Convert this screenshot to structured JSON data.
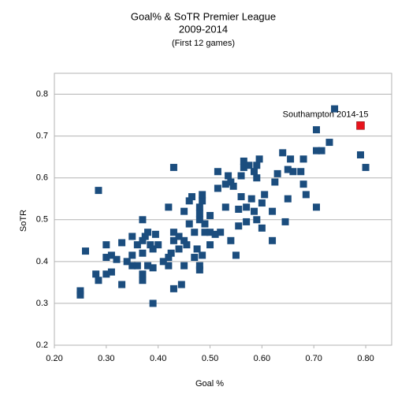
{
  "chart_data": {
    "type": "scatter",
    "title": "Goal% & SoTR Premier League",
    "subtitle": "2009-2014",
    "note": "(First 12 games)",
    "x_label": "Goal %",
    "y_label": "SoTR",
    "color": "#1b4d7e",
    "x": [
      0.25,
      0.25,
      0.26,
      0.28,
      0.285,
      0.285,
      0.3,
      0.3,
      0.3,
      0.31,
      0.31,
      0.32,
      0.33,
      0.33,
      0.34,
      0.35,
      0.35,
      0.35,
      0.36,
      0.36,
      0.37,
      0.37,
      0.37,
      0.37,
      0.37,
      0.375,
      0.38,
      0.38,
      0.385,
      0.39,
      0.39,
      0.39,
      0.395,
      0.4,
      0.41,
      0.42,
      0.42,
      0.42,
      0.425,
      0.43,
      0.43,
      0.43,
      0.43,
      0.44,
      0.44,
      0.445,
      0.45,
      0.45,
      0.45,
      0.455,
      0.46,
      0.46,
      0.465,
      0.47,
      0.47,
      0.475,
      0.48,
      0.48,
      0.48,
      0.48,
      0.48,
      0.485,
      0.485,
      0.485,
      0.49,
      0.49,
      0.5,
      0.5,
      0.5,
      0.51,
      0.515,
      0.515,
      0.52,
      0.53,
      0.53,
      0.535,
      0.54,
      0.54,
      0.545,
      0.55,
      0.555,
      0.555,
      0.56,
      0.56,
      0.565,
      0.565,
      0.57,
      0.57,
      0.575,
      0.58,
      0.585,
      0.585,
      0.59,
      0.59,
      0.59,
      0.595,
      0.6,
      0.6,
      0.605,
      0.62,
      0.62,
      0.625,
      0.63,
      0.64,
      0.645,
      0.65,
      0.65,
      0.655,
      0.66,
      0.675,
      0.68,
      0.68,
      0.685,
      0.705,
      0.705,
      0.705,
      0.715,
      0.73,
      0.74,
      0.79,
      0.8
    ],
    "values": [
      0.33,
      0.32,
      0.425,
      0.37,
      0.355,
      0.57,
      0.44,
      0.41,
      0.37,
      0.415,
      0.375,
      0.405,
      0.345,
      0.445,
      0.4,
      0.46,
      0.415,
      0.39,
      0.44,
      0.39,
      0.5,
      0.45,
      0.42,
      0.37,
      0.355,
      0.46,
      0.47,
      0.39,
      0.44,
      0.3,
      0.43,
      0.385,
      0.465,
      0.44,
      0.4,
      0.39,
      0.41,
      0.53,
      0.42,
      0.625,
      0.335,
      0.45,
      0.47,
      0.46,
      0.43,
      0.345,
      0.39,
      0.45,
      0.52,
      0.44,
      0.49,
      0.545,
      0.555,
      0.47,
      0.41,
      0.43,
      0.5,
      0.515,
      0.53,
      0.39,
      0.38,
      0.545,
      0.56,
      0.415,
      0.49,
      0.47,
      0.44,
      0.47,
      0.51,
      0.465,
      0.575,
      0.615,
      0.47,
      0.53,
      0.585,
      0.605,
      0.45,
      0.59,
      0.58,
      0.415,
      0.525,
      0.485,
      0.555,
      0.605,
      0.625,
      0.64,
      0.495,
      0.53,
      0.63,
      0.55,
      0.615,
      0.52,
      0.63,
      0.5,
      0.6,
      0.645,
      0.54,
      0.48,
      0.56,
      0.52,
      0.45,
      0.59,
      0.61,
      0.66,
      0.495,
      0.62,
      0.55,
      0.645,
      0.615,
      0.615,
      0.645,
      0.585,
      0.56,
      0.715,
      0.665,
      0.53,
      0.665,
      0.685,
      0.765,
      0.655,
      0.625
    ],
    "highlight": {
      "label": "Southampton 2014-15",
      "x": 0.79,
      "y": 0.725,
      "color": "#e8141c"
    },
    "xlim": [
      0.2,
      0.85
    ],
    "ylim": [
      0.2,
      0.85
    ],
    "xticks": [
      {
        "value": 0.2,
        "label": "0.20"
      },
      {
        "value": 0.3,
        "label": "0.30"
      },
      {
        "value": 0.4,
        "label": "0.40"
      },
      {
        "value": 0.5,
        "label": "0.50"
      },
      {
        "value": 0.6,
        "label": "0.60"
      },
      {
        "value": 0.7,
        "label": "0.70"
      },
      {
        "value": 0.8,
        "label": "0.80"
      }
    ],
    "yticks": [
      0.2,
      0.3,
      0.4,
      0.5,
      0.6,
      0.7,
      0.8
    ],
    "grid": true
  }
}
